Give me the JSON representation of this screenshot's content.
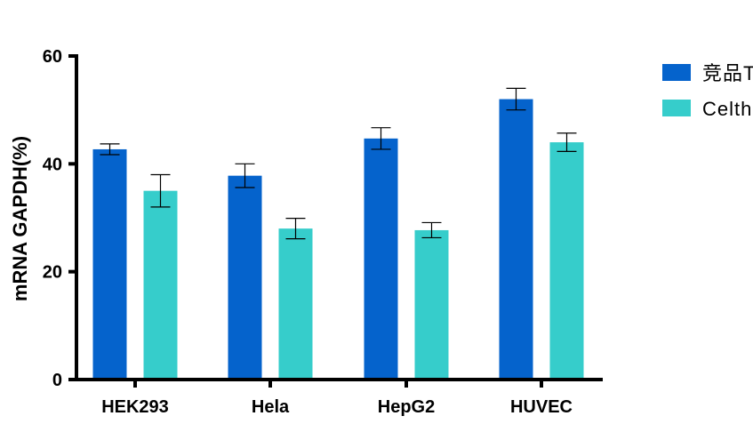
{
  "chart_data": {
    "type": "bar",
    "title": "",
    "xlabel": "",
    "ylabel": "mRNA GAPDH(%)",
    "ylim": [
      0,
      60
    ],
    "yticks": [
      0,
      20,
      40,
      60
    ],
    "grid": false,
    "legend_position": "top-right",
    "categories": [
      "HEK293",
      "Hela",
      "HepG2",
      "HUVEC"
    ],
    "series": [
      {
        "name": "竞品T",
        "color": "#0563CC",
        "values": [
          42.7,
          37.8,
          44.7,
          52.0
        ],
        "errors": [
          1.0,
          2.2,
          2.0,
          2.0
        ]
      },
      {
        "name": "Celth",
        "color": "#36CDCB",
        "values": [
          35.0,
          28.0,
          27.7,
          44.0
        ],
        "errors": [
          3.0,
          1.9,
          1.4,
          1.7
        ]
      }
    ]
  }
}
